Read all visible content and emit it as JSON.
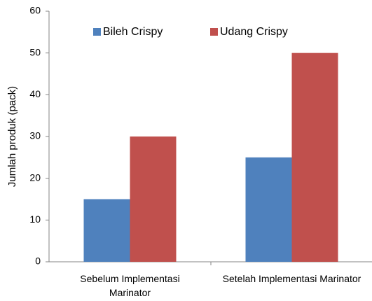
{
  "chart_data": {
    "type": "bar",
    "y_label": "Jumlah produk (pack)",
    "categories": [
      "Sebelum Implementasi Marinator",
      "Setelah Implementasi Marinator"
    ],
    "series": [
      {
        "name": "Bileh Crispy",
        "color": "#4f81bd",
        "values": [
          15,
          25
        ]
      },
      {
        "name": "Udang Crispy",
        "color": "#c0504d",
        "values": [
          30,
          50
        ]
      }
    ],
    "ylim": [
      0,
      60
    ],
    "yticks": [
      0,
      10,
      20,
      30,
      40,
      50,
      60
    ],
    "grid": false,
    "legend": "top"
  }
}
